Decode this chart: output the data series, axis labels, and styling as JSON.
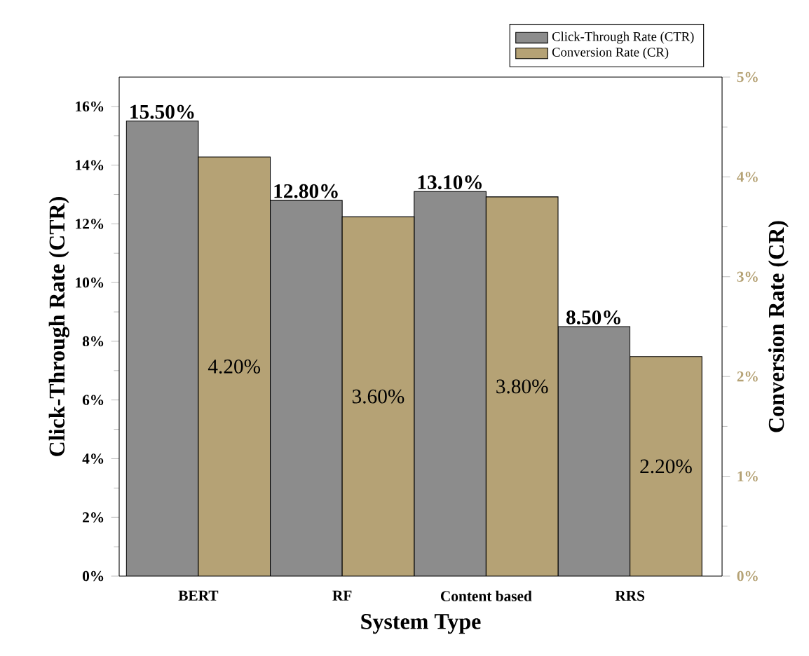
{
  "chart_data": {
    "type": "bar",
    "xlabel": "System Type",
    "ylabel": "Click-Through Rate (CTR)",
    "y2label": "Conversion Rate (CR)",
    "categories": [
      "BERT",
      "RF",
      "Content based",
      "RRS"
    ],
    "series": [
      {
        "name": "Click-Through Rate (CTR)",
        "color": "#8c8c8c",
        "values": [
          15.5,
          12.8,
          13.1,
          8.5
        ],
        "value_labels": [
          "15.50%",
          "12.80%",
          "13.10%",
          "8.50%"
        ]
      },
      {
        "name": "Conversion Rate (CR)",
        "color": "#b5a275",
        "axis": "y2",
        "values": [
          4.2,
          3.6,
          3.8,
          2.2
        ],
        "value_labels": [
          "4.20%",
          "3.60%",
          "3.80%",
          "2.20%"
        ]
      }
    ],
    "ylim": [
      0,
      17
    ],
    "yticks": [
      {
        "value": 0,
        "label": "0%"
      },
      {
        "value": 2,
        "label": "2%"
      },
      {
        "value": 4,
        "label": "4%"
      },
      {
        "value": 6,
        "label": "6%"
      },
      {
        "value": 8,
        "label": "8%"
      },
      {
        "value": 10,
        "label": "10%"
      },
      {
        "value": 12,
        "label": "12%"
      },
      {
        "value": 14,
        "label": "14%"
      },
      {
        "value": 16,
        "label": "16%"
      }
    ],
    "y2lim": [
      0,
      5
    ],
    "y2ticks": [
      {
        "value": 0,
        "label": "0%"
      },
      {
        "value": 1,
        "label": "1%"
      },
      {
        "value": 2,
        "label": "2%"
      },
      {
        "value": 3,
        "label": "3%"
      },
      {
        "value": 4,
        "label": "4%"
      },
      {
        "value": 5,
        "label": "5%"
      }
    ],
    "legend": "top right"
  }
}
